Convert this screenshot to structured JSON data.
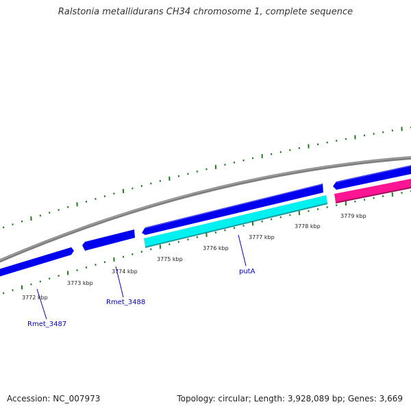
{
  "title": "Ralstonia metallidurans CH34 chromosome 1, complete sequence",
  "footer": {
    "accession": "Accession: NC_007973",
    "summary": "Topology: circular; Length: 3,928,089 bp; Genes: 3,669"
  },
  "ruler": {
    "tick_labels": [
      "3772 kbp",
      "3773 kbp",
      "3774 kbp",
      "3775 kbp",
      "3776 kbp",
      "3777 kbp",
      "3778 kbp",
      "3779 kbp"
    ]
  },
  "genes": [
    {
      "label": "Rmet_3487",
      "strand": "forward",
      "color": "#0000ff"
    },
    {
      "label": "Rmet_3488",
      "strand": "reverse",
      "color": "#0000ff"
    },
    {
      "label": "putA",
      "strand": "reverse",
      "color": "#00ffff"
    }
  ],
  "colors": {
    "backbone": "#808080",
    "cds": "#0000ff",
    "putA": "#00ffff",
    "other_feature": "#ff1493",
    "ruler_ticks": "#1f7a1f",
    "gene_label": "#0000c8"
  }
}
